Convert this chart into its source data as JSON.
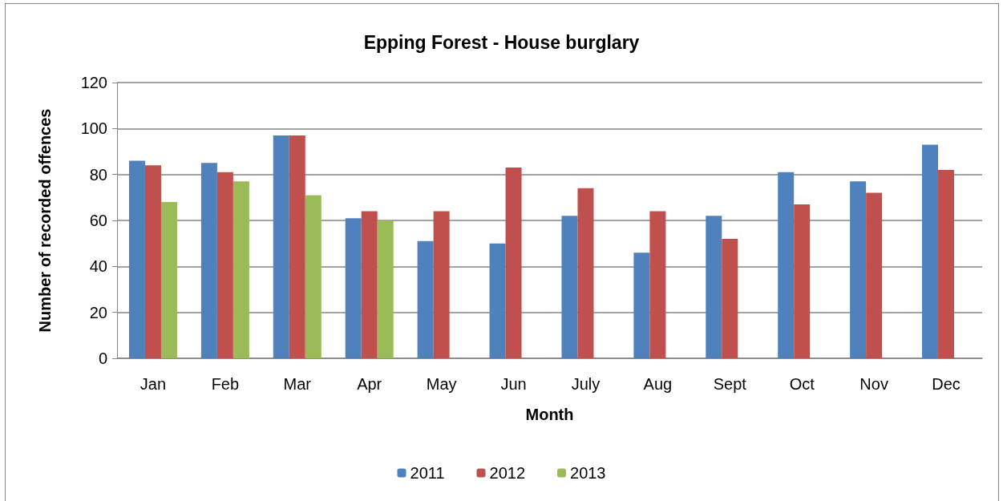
{
  "chart_data": {
    "type": "bar",
    "title": "Epping Forest - House burglary",
    "xlabel": "Month",
    "ylabel": "Number of recorded offences",
    "categories": [
      "Jan",
      "Feb",
      "Mar",
      "Apr",
      "May",
      "Jun",
      "July",
      "Aug",
      "Sept",
      "Oct",
      "Nov",
      "Dec"
    ],
    "series": [
      {
        "name": "2011",
        "color": "#4f81bd",
        "values": [
          86,
          85,
          97,
          61,
          51,
          50,
          62,
          46,
          62,
          81,
          77,
          93
        ]
      },
      {
        "name": "2012",
        "color": "#c0504d",
        "values": [
          84,
          81,
          97,
          64,
          64,
          83,
          74,
          64,
          52,
          67,
          72,
          82
        ]
      },
      {
        "name": "2013",
        "color": "#9bbb59",
        "values": [
          68,
          77,
          71,
          60,
          null,
          null,
          null,
          null,
          null,
          null,
          null,
          null
        ]
      }
    ],
    "ylim": [
      0,
      120
    ],
    "yticks": [
      0,
      20,
      40,
      60,
      80,
      100,
      120
    ],
    "grid": "y",
    "legend": "bottom"
  }
}
